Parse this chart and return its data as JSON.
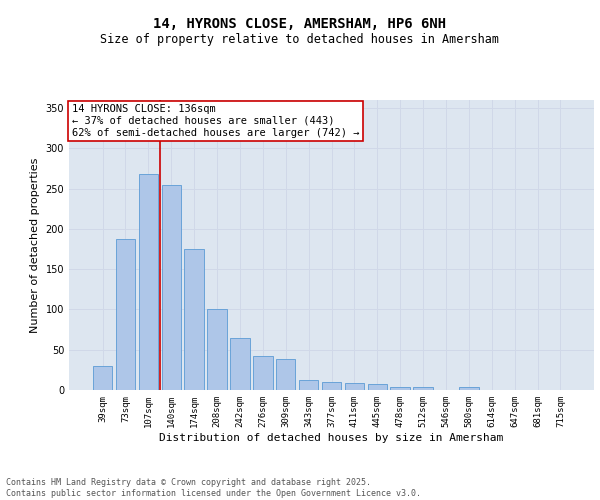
{
  "title_line1": "14, HYRONS CLOSE, AMERSHAM, HP6 6NH",
  "title_line2": "Size of property relative to detached houses in Amersham",
  "xlabel": "Distribution of detached houses by size in Amersham",
  "ylabel": "Number of detached properties",
  "categories": [
    "39sqm",
    "73sqm",
    "107sqm",
    "140sqm",
    "174sqm",
    "208sqm",
    "242sqm",
    "276sqm",
    "309sqm",
    "343sqm",
    "377sqm",
    "411sqm",
    "445sqm",
    "478sqm",
    "512sqm",
    "546sqm",
    "580sqm",
    "614sqm",
    "647sqm",
    "681sqm",
    "715sqm"
  ],
  "values": [
    30,
    188,
    268,
    255,
    175,
    100,
    65,
    42,
    38,
    13,
    10,
    9,
    7,
    4,
    4,
    0,
    4,
    0,
    0,
    0,
    0
  ],
  "bar_color": "#aec6e8",
  "bar_edge_color": "#5b9bd5",
  "bar_edge_width": 0.6,
  "vline_x_index": 3,
  "vline_color": "#cc0000",
  "annotation_text": "14 HYRONS CLOSE: 136sqm\n← 37% of detached houses are smaller (443)\n62% of semi-detached houses are larger (742) →",
  "ylim": [
    0,
    360
  ],
  "yticks": [
    0,
    50,
    100,
    150,
    200,
    250,
    300,
    350
  ],
  "grid_color": "#d0d8e8",
  "background_color": "#dde6f0",
  "footer_text": "Contains HM Land Registry data © Crown copyright and database right 2025.\nContains public sector information licensed under the Open Government Licence v3.0.",
  "title_fontsize": 10,
  "subtitle_fontsize": 8.5,
  "tick_fontsize": 6.5,
  "ylabel_fontsize": 8,
  "xlabel_fontsize": 8,
  "annotation_fontsize": 7.5,
  "footer_fontsize": 6
}
